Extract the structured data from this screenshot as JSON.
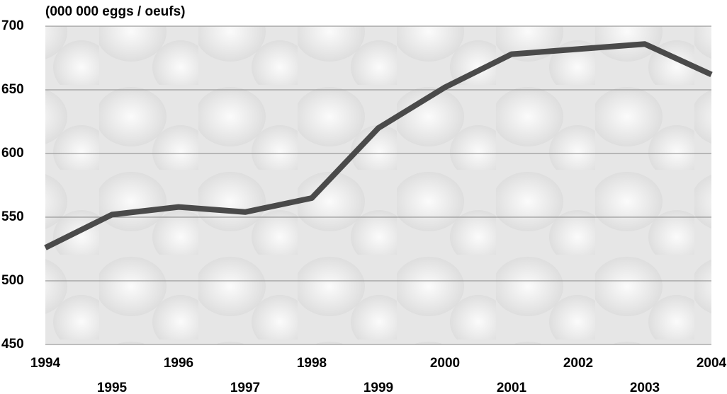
{
  "chart_data": {
    "type": "line",
    "title": "(000 000 eggs / oeufs)",
    "x": [
      1994,
      1995,
      1996,
      1997,
      1998,
      1999,
      2000,
      2001,
      2002,
      2003,
      2004
    ],
    "series": [
      {
        "name": "Eggs",
        "color": "#4a4a4a",
        "values": [
          526,
          552,
          558,
          554,
          565,
          620,
          652,
          678,
          682,
          686,
          662
        ]
      }
    ],
    "xlim": [
      1994,
      2004
    ],
    "xticks": [
      1994,
      1995,
      1996,
      1997,
      1998,
      1999,
      2000,
      2001,
      2002,
      2003,
      2004
    ],
    "ylim": [
      450,
      700
    ],
    "yticks": [
      450,
      500,
      550,
      600,
      650,
      700
    ],
    "grid": true
  }
}
